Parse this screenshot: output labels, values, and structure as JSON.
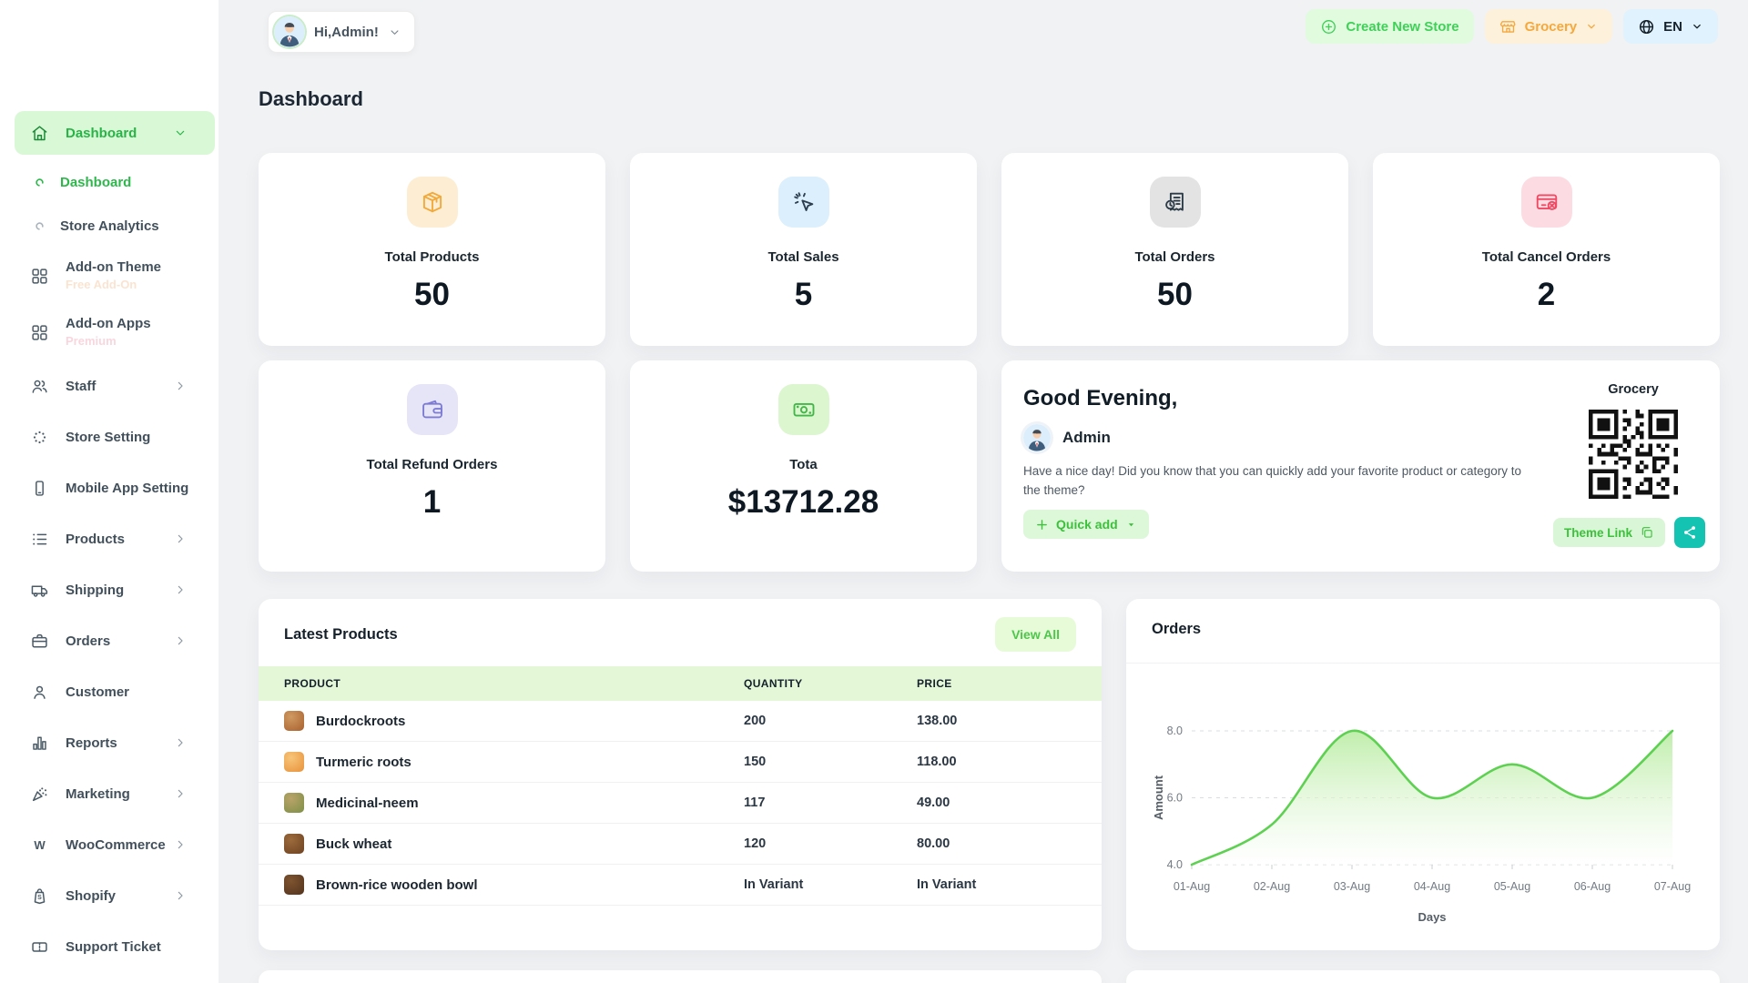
{
  "page_title": "Dashboard",
  "colors": {
    "accent_green": "#3dc03c",
    "light_green": "#def8d9",
    "orange": "#f5a83c",
    "light_orange": "#fdf1dc",
    "light_blue": "#e0f2fd",
    "teal": "#14c3b2",
    "table_header_green": "#e4f8d8"
  },
  "topbar": {
    "greeting": "Hi,Admin!",
    "create_new_store": "Create New Store",
    "store_switcher": "Grocery",
    "language": "EN"
  },
  "sidebar": {
    "items": [
      {
        "id": "dashboard",
        "label": "Dashboard",
        "icon": "home",
        "type": "pill",
        "active": true,
        "chevron": "down"
      },
      {
        "id": "dashboard-sub",
        "label": "Dashboard",
        "icon": "loader",
        "type": "sub",
        "active": true
      },
      {
        "id": "store-analytics",
        "label": "Store Analytics",
        "icon": "loader",
        "type": "sub"
      },
      {
        "id": "add-on-theme",
        "label": "Add-on Theme",
        "icon": "grid",
        "type": "addon",
        "badge": "Free Add-On",
        "badge_color": "#f2b37c",
        "badge_opacity": 0.35
      },
      {
        "id": "add-on-apps",
        "label": "Add-on Apps",
        "icon": "grid",
        "type": "addon",
        "badge": "Premium",
        "badge_color": "#f09aae",
        "badge_opacity": 0.4
      },
      {
        "id": "staff",
        "label": "Staff",
        "icon": "users",
        "chevron": "right"
      },
      {
        "id": "store-setting",
        "label": "Store Setting",
        "icon": "dots"
      },
      {
        "id": "mobile-app-setting",
        "label": "Mobile App Setting",
        "icon": "phone"
      },
      {
        "id": "products",
        "label": "Products",
        "icon": "list",
        "chevron": "right"
      },
      {
        "id": "shipping",
        "label": "Shipping",
        "icon": "truck",
        "chevron": "right"
      },
      {
        "id": "orders",
        "label": "Orders",
        "icon": "briefcase",
        "chevron": "right"
      },
      {
        "id": "customer",
        "label": "Customer",
        "icon": "user"
      },
      {
        "id": "reports",
        "label": "Reports",
        "icon": "bars",
        "chevron": "right"
      },
      {
        "id": "marketing",
        "label": "Marketing",
        "icon": "confetti",
        "chevron": "right"
      },
      {
        "id": "woocommerce",
        "label": "WooCommerce",
        "icon": "woo",
        "chevron": "right"
      },
      {
        "id": "shopify",
        "label": "Shopify",
        "icon": "shopify",
        "chevron": "right"
      },
      {
        "id": "support-ticket",
        "label": "Support Ticket",
        "icon": "ticket"
      }
    ]
  },
  "stats": [
    {
      "label": "Total Products",
      "value": "50",
      "icon": "box",
      "icon_bg": "#fdeed3",
      "icon_color": "#f2a93b"
    },
    {
      "label": "Total Sales",
      "value": "5",
      "icon": "click",
      "icon_bg": "#dbeffc",
      "icon_color": "#2c3e50"
    },
    {
      "label": "Total Orders",
      "value": "50",
      "icon": "receipt-clock",
      "icon_bg": "#e3e3e3",
      "icon_color": "#2c3b47"
    },
    {
      "label": "Total Cancel Orders",
      "value": "2",
      "icon": "card-cancel",
      "icon_bg": "#fcdce2",
      "icon_color": "#ee4a64"
    },
    {
      "label": "Total Refund Orders",
      "value": "1",
      "icon": "wallet",
      "icon_bg": "#e6e5f8",
      "icon_color": "#7d7bd3"
    },
    {
      "label": "Tota",
      "value": "$13712.28",
      "icon": "money",
      "icon_bg": "#dcf6cf",
      "icon_color": "#43b649"
    }
  ],
  "greeting_card": {
    "title": "Good Evening,",
    "name": "Admin",
    "message": "Have a nice day! Did you know that you can quickly add your favorite product or category to the theme?",
    "quick_add_label": "Quick add",
    "store_label": "Grocery",
    "theme_link_label": "Theme Link"
  },
  "latest_products": {
    "title": "Latest Products",
    "view_all_label": "View All",
    "columns": [
      "PRODUCT",
      "QUANTITY",
      "PRICE"
    ],
    "rows": [
      {
        "name": "Burdockroots",
        "quantity": "200",
        "price": "138.00",
        "thumb_color": "#a8602f",
        "thumb_color2": "#d09a62"
      },
      {
        "name": "Turmeric roots",
        "quantity": "150",
        "price": "118.00",
        "thumb_color": "#e8923c",
        "thumb_color2": "#f7c579"
      },
      {
        "name": "Medicinal-neem",
        "quantity": "117",
        "price": "49.00",
        "thumb_color": "#7d9048",
        "thumb_color2": "#b9a368"
      },
      {
        "name": "Buck wheat",
        "quantity": "120",
        "price": "80.00",
        "thumb_color": "#6e4322",
        "thumb_color2": "#9c6a3c"
      },
      {
        "name": "Brown-rice wooden bowl",
        "quantity": "In Variant",
        "price": "In Variant",
        "thumb_color": "#53331d",
        "thumb_color2": "#7e5430"
      }
    ]
  },
  "chart_data": {
    "type": "area",
    "title": "Orders",
    "x": [
      "01-Aug",
      "02-Aug",
      "03-Aug",
      "04-Aug",
      "05-Aug",
      "06-Aug",
      "07-Aug"
    ],
    "series": [
      {
        "name": "Amount",
        "values": [
          4.0,
          5.2,
          8.0,
          6.0,
          7.0,
          6.0,
          8.0
        ]
      }
    ],
    "xlabel": "Days",
    "ylabel": "Amount",
    "yticks": [
      4.0,
      6.0,
      8.0
    ],
    "ylim": [
      4.0,
      8.8
    ],
    "grid": "dashed-horizontal",
    "legend": "none",
    "line_color": "#5ed052",
    "fill_top": "#b5eb9d",
    "fill_bottom": "#ffffff"
  }
}
